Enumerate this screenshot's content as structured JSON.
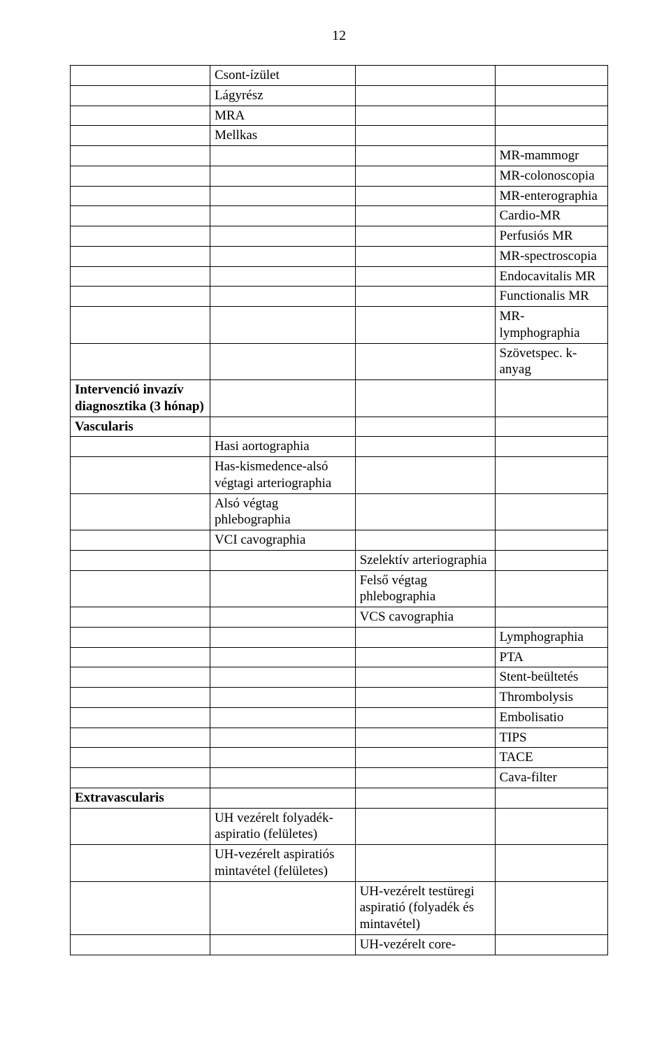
{
  "page_number": "12",
  "rows": [
    {
      "c1": "",
      "c2": "Csont-ízület",
      "c3": "",
      "c4": ""
    },
    {
      "c1": "",
      "c2": "Lágyrész",
      "c3": "",
      "c4": ""
    },
    {
      "c1": "",
      "c2": "MRA",
      "c3": "",
      "c4": ""
    },
    {
      "c1": "",
      "c2": "Mellkas",
      "c3": "",
      "c4": ""
    },
    {
      "c1": "",
      "c2": "",
      "c3": "",
      "c4": "MR-mammogr"
    },
    {
      "c1": "",
      "c2": "",
      "c3": "",
      "c4": "MR-colonoscopia"
    },
    {
      "c1": "",
      "c2": "",
      "c3": "",
      "c4": "MR-enterographia"
    },
    {
      "c1": "",
      "c2": "",
      "c3": "",
      "c4": "Cardio-MR"
    },
    {
      "c1": "",
      "c2": "",
      "c3": "",
      "c4": "Perfusiós MR"
    },
    {
      "c1": "",
      "c2": "",
      "c3": "",
      "c4": "MR-spectroscopia"
    },
    {
      "c1": "",
      "c2": "",
      "c3": "",
      "c4": "Endocavitalis MR"
    },
    {
      "c1": "",
      "c2": "",
      "c3": "",
      "c4": "Functionalis MR"
    },
    {
      "c1": "",
      "c2": "",
      "c3": "",
      "c4": "MR-lymphographia"
    },
    {
      "c1": "",
      "c2": "",
      "c3": "",
      "c4": "Szövetspec. k-anyag"
    },
    {
      "c1": "Intervenció invazív diagnosztika (3 hónap)",
      "c1_bold": true,
      "c2": "",
      "c3": "",
      "c4": ""
    },
    {
      "c1": "Vascularis",
      "c1_bold": true,
      "c2": "",
      "c3": "",
      "c4": ""
    },
    {
      "c1": "",
      "c2": "Hasi aortographia",
      "c3": "",
      "c4": ""
    },
    {
      "c1": "",
      "c2": "Has-kismedence-alsó végtagi arteriographia",
      "c3": "",
      "c4": ""
    },
    {
      "c1": "",
      "c2": "Alsó végtag phlebographia",
      "c3": "",
      "c4": ""
    },
    {
      "c1": "",
      "c2": "VCI cavographia",
      "c3": "",
      "c4": ""
    },
    {
      "c1": "",
      "c2": "",
      "c3": "Szelektív arteriographia",
      "c4": ""
    },
    {
      "c1": "",
      "c2": "",
      "c3": "Felső végtag phlebographia",
      "c4": ""
    },
    {
      "c1": "",
      "c2": "",
      "c3": "VCS cavographia",
      "c4": ""
    },
    {
      "c1": "",
      "c2": "",
      "c3": "",
      "c4": "Lymphographia"
    },
    {
      "c1": "",
      "c2": "",
      "c3": "",
      "c4": "PTA"
    },
    {
      "c1": "",
      "c2": "",
      "c3": "",
      "c4": "Stent-beültetés"
    },
    {
      "c1": "",
      "c2": "",
      "c3": "",
      "c4": "Thrombolysis"
    },
    {
      "c1": "",
      "c2": "",
      "c3": "",
      "c4": "Embolisatio"
    },
    {
      "c1": "",
      "c2": "",
      "c3": "",
      "c4": "TIPS"
    },
    {
      "c1": "",
      "c2": "",
      "c3": "",
      "c4": "TACE"
    },
    {
      "c1": "",
      "c2": "",
      "c3": "",
      "c4": "Cava-filter"
    },
    {
      "c1": "Extravascularis",
      "c1_bold": true,
      "c2": "",
      "c3": "",
      "c4": ""
    },
    {
      "c1": "",
      "c2": "UH vezérelt folyadék-aspiratio (felületes)",
      "c3": "",
      "c4": ""
    },
    {
      "c1": "",
      "c2": "UH-vezérelt aspiratiós mintavétel (felületes)",
      "c3": "",
      "c4": ""
    },
    {
      "c1": "",
      "c2": "",
      "c3": "UH-vezérelt testüregi aspiratió (folyadék és mintavétel)",
      "c4": ""
    },
    {
      "c1": "",
      "c2": "",
      "c3": "UH-vezérelt core-",
      "c4": ""
    }
  ]
}
